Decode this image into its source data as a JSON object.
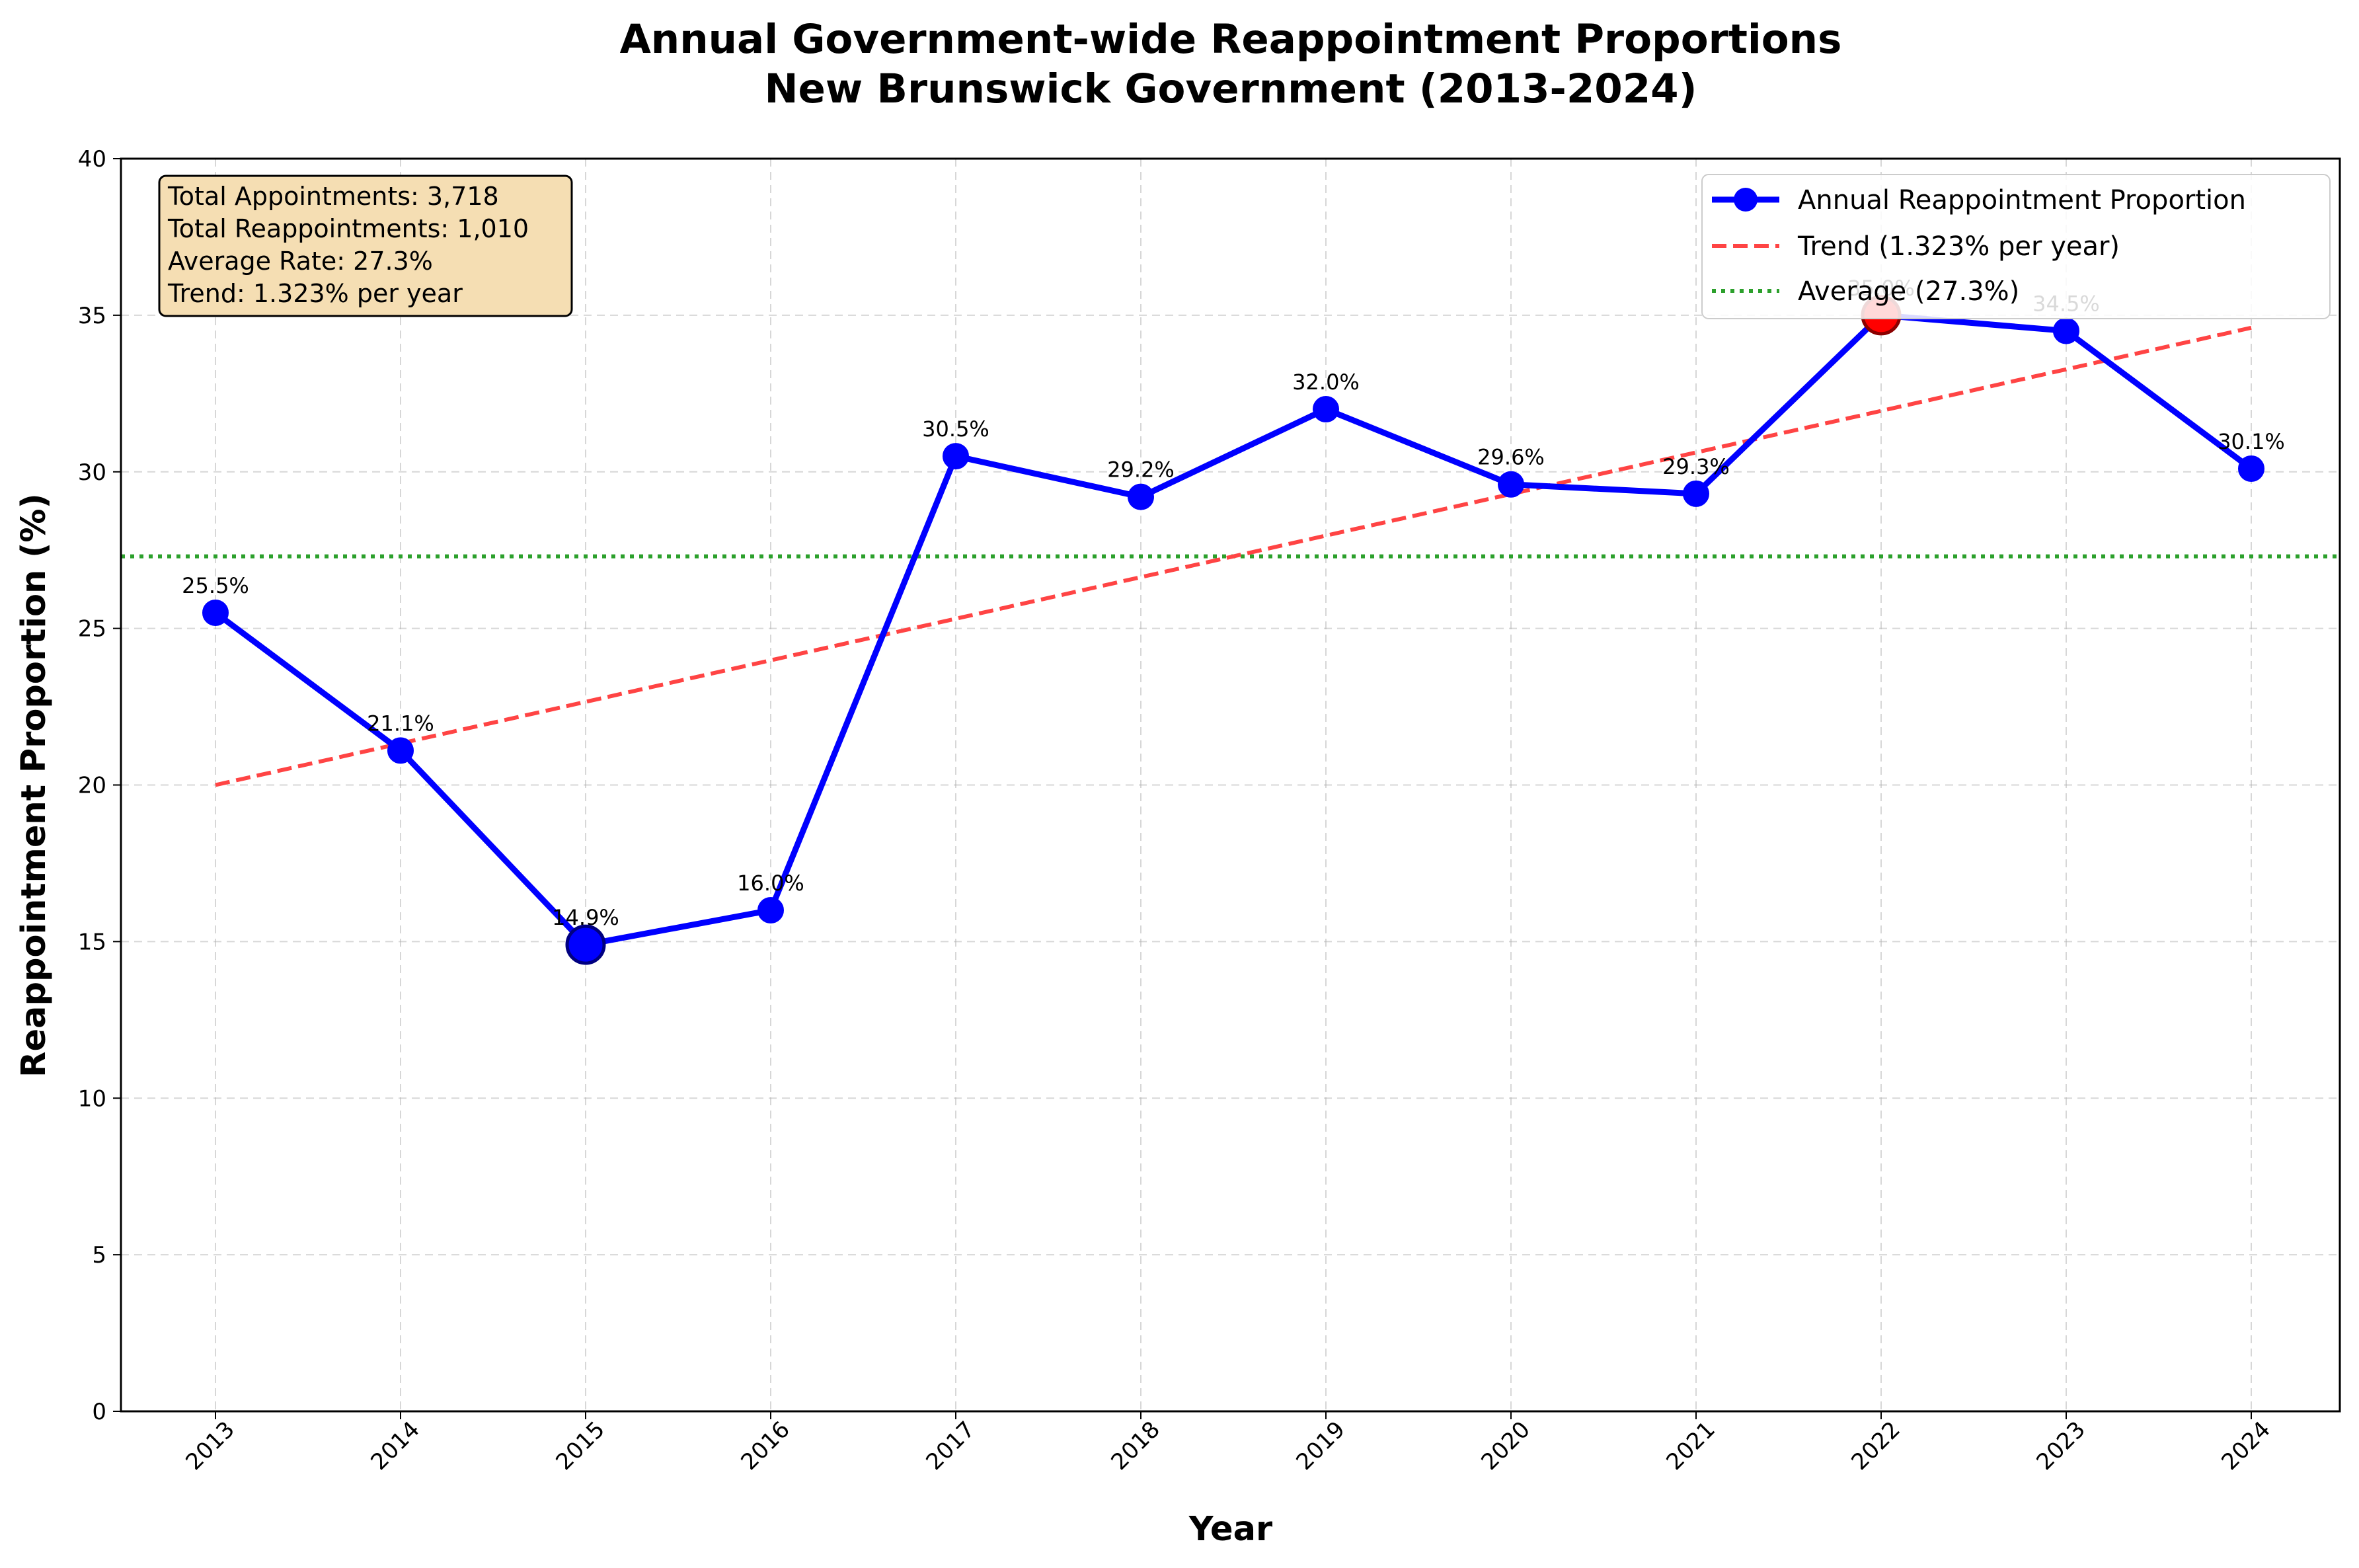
{
  "chart_data": {
    "type": "line",
    "title_line1": "Annual Government-wide Reappointment Proportions",
    "title_line2": "New Brunswick Government (2013-2024)",
    "xlabel": "Year",
    "ylabel": "Reappointment Proportion (%)",
    "categories": [
      "2013",
      "2014",
      "2015",
      "2016",
      "2017",
      "2018",
      "2019",
      "2020",
      "2021",
      "2022",
      "2023",
      "2024"
    ],
    "ylim": [
      0,
      40
    ],
    "yticks": [
      "0",
      "5",
      "10",
      "15",
      "20",
      "25",
      "30",
      "35",
      "40"
    ],
    "grid": true,
    "legend_position": "top-right",
    "series": [
      {
        "name": "Annual Reappointment Proportion",
        "values": [
          25.5,
          21.1,
          14.9,
          16.0,
          30.5,
          29.2,
          32.0,
          29.6,
          29.3,
          35.0,
          34.5,
          30.1
        ],
        "labels": [
          "25.5%",
          "21.1%",
          "14.9%",
          "16.0%",
          "30.5%",
          "29.2%",
          "32.0%",
          "29.6%",
          "29.3%",
          "35.0%",
          "34.5%",
          "30.1%"
        ],
        "color": "#0000ff",
        "highlight_max_index": 9,
        "highlight_max_color": "#ff0000",
        "highlight_min_index": 2
      },
      {
        "name": "Trend (1.323% per year)",
        "start": 20.0,
        "end": 34.6,
        "color": "#ff4444",
        "style": "dashed"
      },
      {
        "name": "Average (27.3%)",
        "value": 27.3,
        "color": "#2ca02c",
        "style": "dotted"
      }
    ],
    "stats_box": {
      "lines": [
        "Total Appointments: 3,718",
        "Total Reappointments: 1,010",
        "Average Rate: 27.3%",
        "Trend: 1.323% per year"
      ],
      "background": "#f5deb3"
    }
  }
}
